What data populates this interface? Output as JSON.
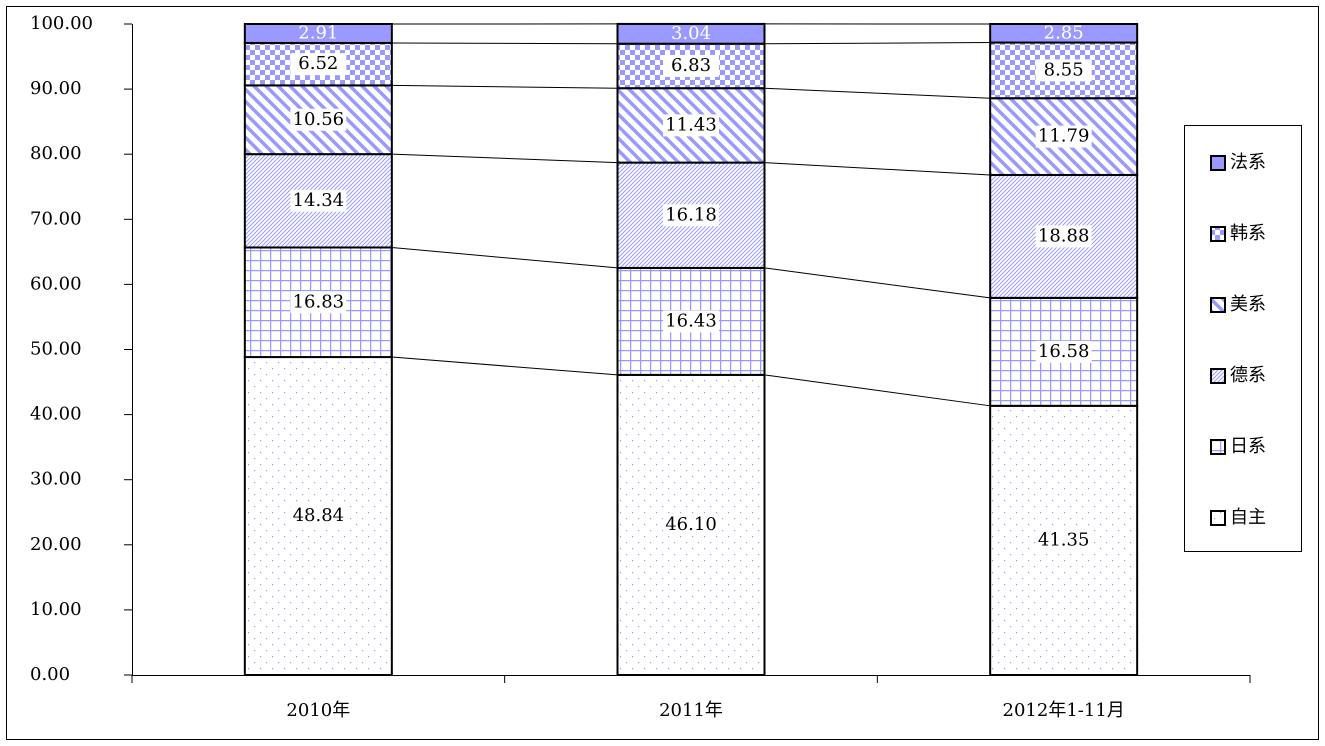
{
  "chart_data": {
    "type": "stacked_bar",
    "categories": [
      "2010年",
      "2011年",
      "2012年1-11月"
    ],
    "series": [
      {
        "name": "自主",
        "color": "#9999ff",
        "values": [
          48.84,
          46.1,
          41.35
        ],
        "value_labels": [
          "48.84",
          "46.10",
          "41.35"
        ]
      },
      {
        "name": "日系",
        "color": "#9999ff",
        "values": [
          16.83,
          16.43,
          16.58
        ],
        "value_labels": [
          "16.83",
          "16.43",
          "16.58"
        ]
      },
      {
        "name": "德系",
        "color": "#9999ff",
        "values": [
          14.34,
          16.18,
          18.88
        ],
        "value_labels": [
          "14.34",
          "16.18",
          "18.88"
        ]
      },
      {
        "name": "美系",
        "color": "#9999ff",
        "values": [
          10.56,
          11.43,
          11.79
        ],
        "value_labels": [
          "10.56",
          "11.43",
          "11.79"
        ]
      },
      {
        "name": "韩系",
        "color": "#9999ff",
        "values": [
          6.52,
          6.83,
          8.55
        ],
        "value_labels": [
          "6.52",
          "6.83",
          "8.55"
        ]
      },
      {
        "name": "法系",
        "color": "#9999ff",
        "values": [
          2.91,
          3.04,
          2.85
        ],
        "value_labels": [
          "2.91",
          "3.04",
          "2.85"
        ]
      }
    ],
    "ylim": [
      0,
      100
    ],
    "yticks": [
      {
        "value": 0,
        "label": "0.00"
      },
      {
        "value": 10,
        "label": "10.00"
      },
      {
        "value": 20,
        "label": "20.00"
      },
      {
        "value": 30,
        "label": "30.00"
      },
      {
        "value": 40,
        "label": "40.00"
      },
      {
        "value": 50,
        "label": "50.00"
      },
      {
        "value": 60,
        "label": "60.00"
      },
      {
        "value": 70,
        "label": "70.00"
      },
      {
        "value": 80,
        "label": "80.00"
      },
      {
        "value": 90,
        "label": "90.00"
      },
      {
        "value": 100,
        "label": "100.00"
      }
    ],
    "grid": false,
    "legend": "right"
  }
}
